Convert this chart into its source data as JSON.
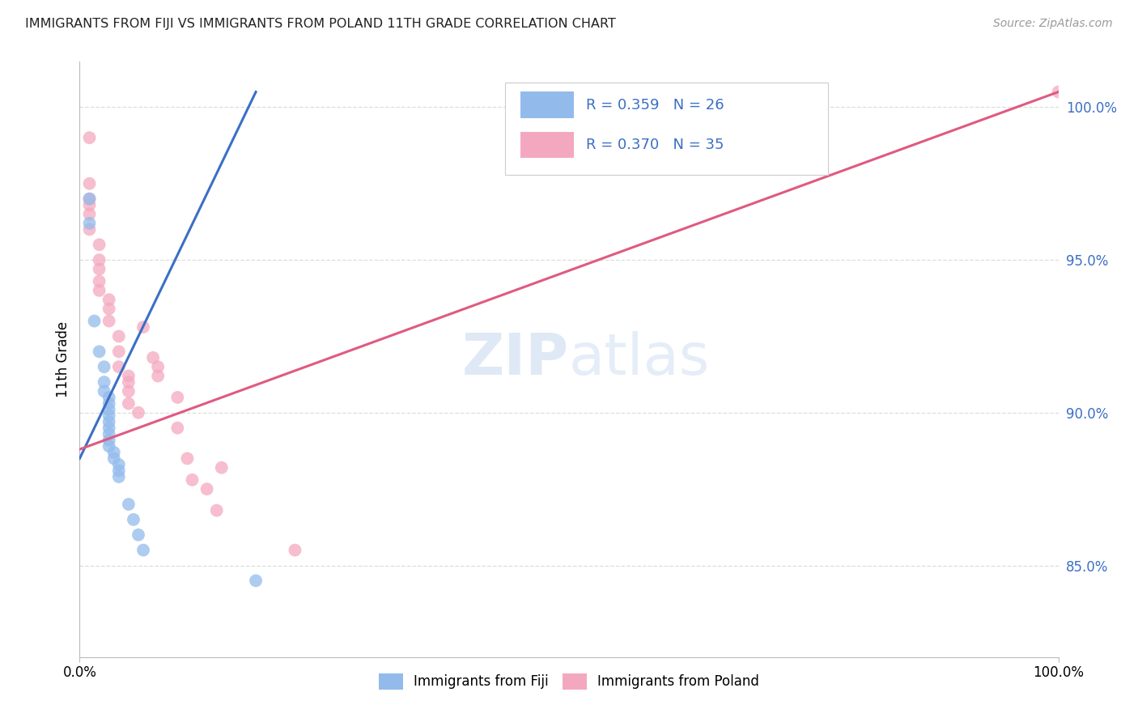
{
  "title": "IMMIGRANTS FROM FIJI VS IMMIGRANTS FROM POLAND 11TH GRADE CORRELATION CHART",
  "source": "Source: ZipAtlas.com",
  "ylabel": "11th Grade",
  "xmin": 0.0,
  "xmax": 100.0,
  "ymin": 82.0,
  "ymax": 101.5,
  "ytick_values": [
    85.0,
    90.0,
    95.0,
    100.0
  ],
  "fiji_R": "0.359",
  "fiji_N": "26",
  "poland_R": "0.370",
  "poland_N": "35",
  "fiji_color": "#92BBEC",
  "fiji_line_color": "#3B6FC4",
  "poland_color": "#F4A8C0",
  "poland_line_color": "#E05A80",
  "legend_text_color": "#3B6FC4",
  "fiji_x": [
    1.0,
    1.0,
    1.5,
    2.0,
    2.5,
    2.5,
    2.5,
    3.0,
    3.0,
    3.0,
    3.0,
    3.0,
    3.0,
    3.0,
    3.0,
    3.0,
    3.5,
    3.5,
    4.0,
    4.0,
    4.0,
    5.0,
    5.5,
    6.0,
    6.5,
    18.0
  ],
  "fiji_y": [
    97.0,
    96.2,
    93.0,
    92.0,
    91.5,
    91.0,
    90.7,
    90.5,
    90.3,
    90.1,
    89.9,
    89.7,
    89.5,
    89.3,
    89.1,
    88.9,
    88.7,
    88.5,
    88.3,
    88.1,
    87.9,
    87.0,
    86.5,
    86.0,
    85.5,
    84.5
  ],
  "poland_x": [
    1.0,
    1.0,
    1.0,
    1.0,
    1.0,
    1.0,
    2.0,
    2.0,
    2.0,
    2.0,
    2.0,
    3.0,
    3.0,
    3.0,
    4.0,
    4.0,
    4.0,
    5.0,
    5.0,
    5.0,
    5.0,
    6.0,
    6.5,
    7.5,
    8.0,
    8.0,
    10.0,
    10.0,
    11.0,
    11.5,
    13.0,
    14.0,
    14.5,
    22.0,
    100.0
  ],
  "poland_y": [
    99.0,
    97.5,
    97.0,
    96.8,
    96.5,
    96.0,
    95.5,
    95.0,
    94.7,
    94.3,
    94.0,
    93.7,
    93.4,
    93.0,
    92.5,
    92.0,
    91.5,
    91.2,
    91.0,
    90.7,
    90.3,
    90.0,
    92.8,
    91.8,
    91.5,
    91.2,
    90.5,
    89.5,
    88.5,
    87.8,
    87.5,
    86.8,
    88.2,
    85.5,
    100.5
  ],
  "fiji_trendline_x": [
    0.0,
    18.0
  ],
  "fiji_trendline_y": [
    88.5,
    100.5
  ],
  "poland_trendline_x": [
    0.0,
    100.0
  ],
  "poland_trendline_y": [
    88.8,
    100.5
  ]
}
